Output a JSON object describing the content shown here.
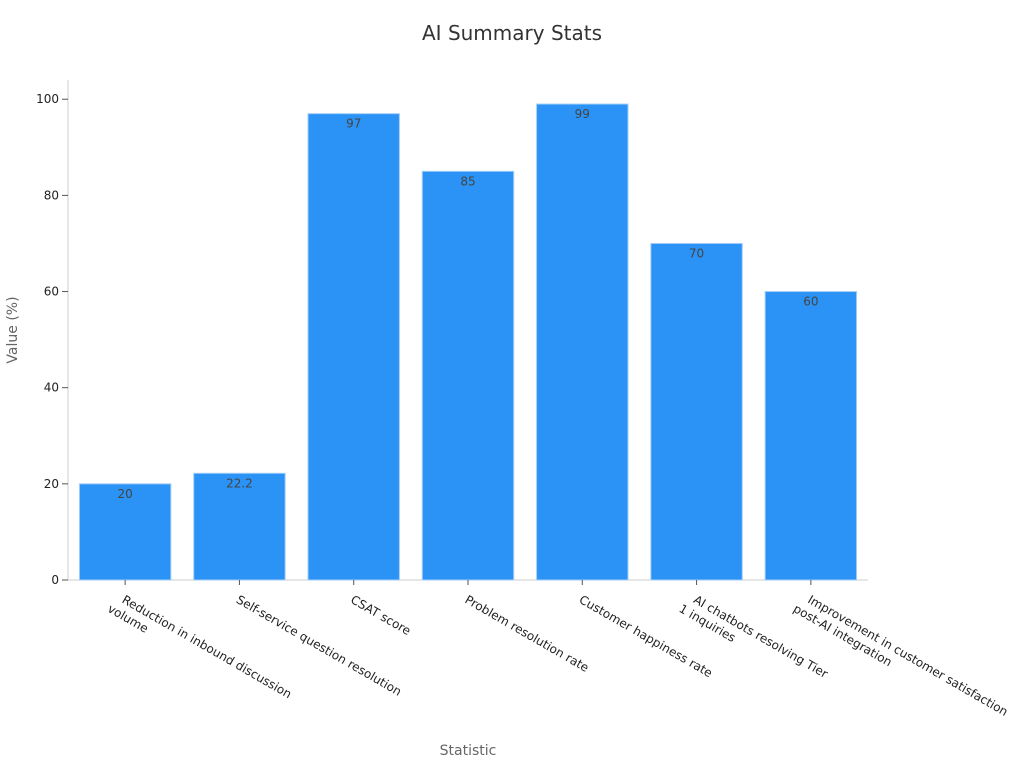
{
  "chart_data": {
    "type": "bar",
    "title": "AI Summary Stats",
    "xlabel": "Statistic",
    "ylabel": "Value (%)",
    "ylim": [
      0,
      104
    ],
    "yticks": [
      0,
      20,
      40,
      60,
      80,
      100
    ],
    "grid": false,
    "bar_color": "#2b93f5",
    "bar_edge_color": "#a6cdf7",
    "categories": [
      [
        "Reduction in inbound discussion",
        "volume"
      ],
      [
        "Self-service question resolution"
      ],
      [
        "CSAT score"
      ],
      [
        "Problem resolution rate"
      ],
      [
        "Customer happiness rate"
      ],
      [
        "AI chatbots resolving Tier",
        "1 inquiries"
      ],
      [
        "Improvement in customer satisfaction",
        "post-AI integration"
      ]
    ],
    "values": [
      20,
      22.2,
      97,
      85,
      99,
      70,
      60
    ],
    "data_labels": [
      "20",
      "22.2",
      "97",
      "85",
      "99",
      "70",
      "60"
    ]
  }
}
